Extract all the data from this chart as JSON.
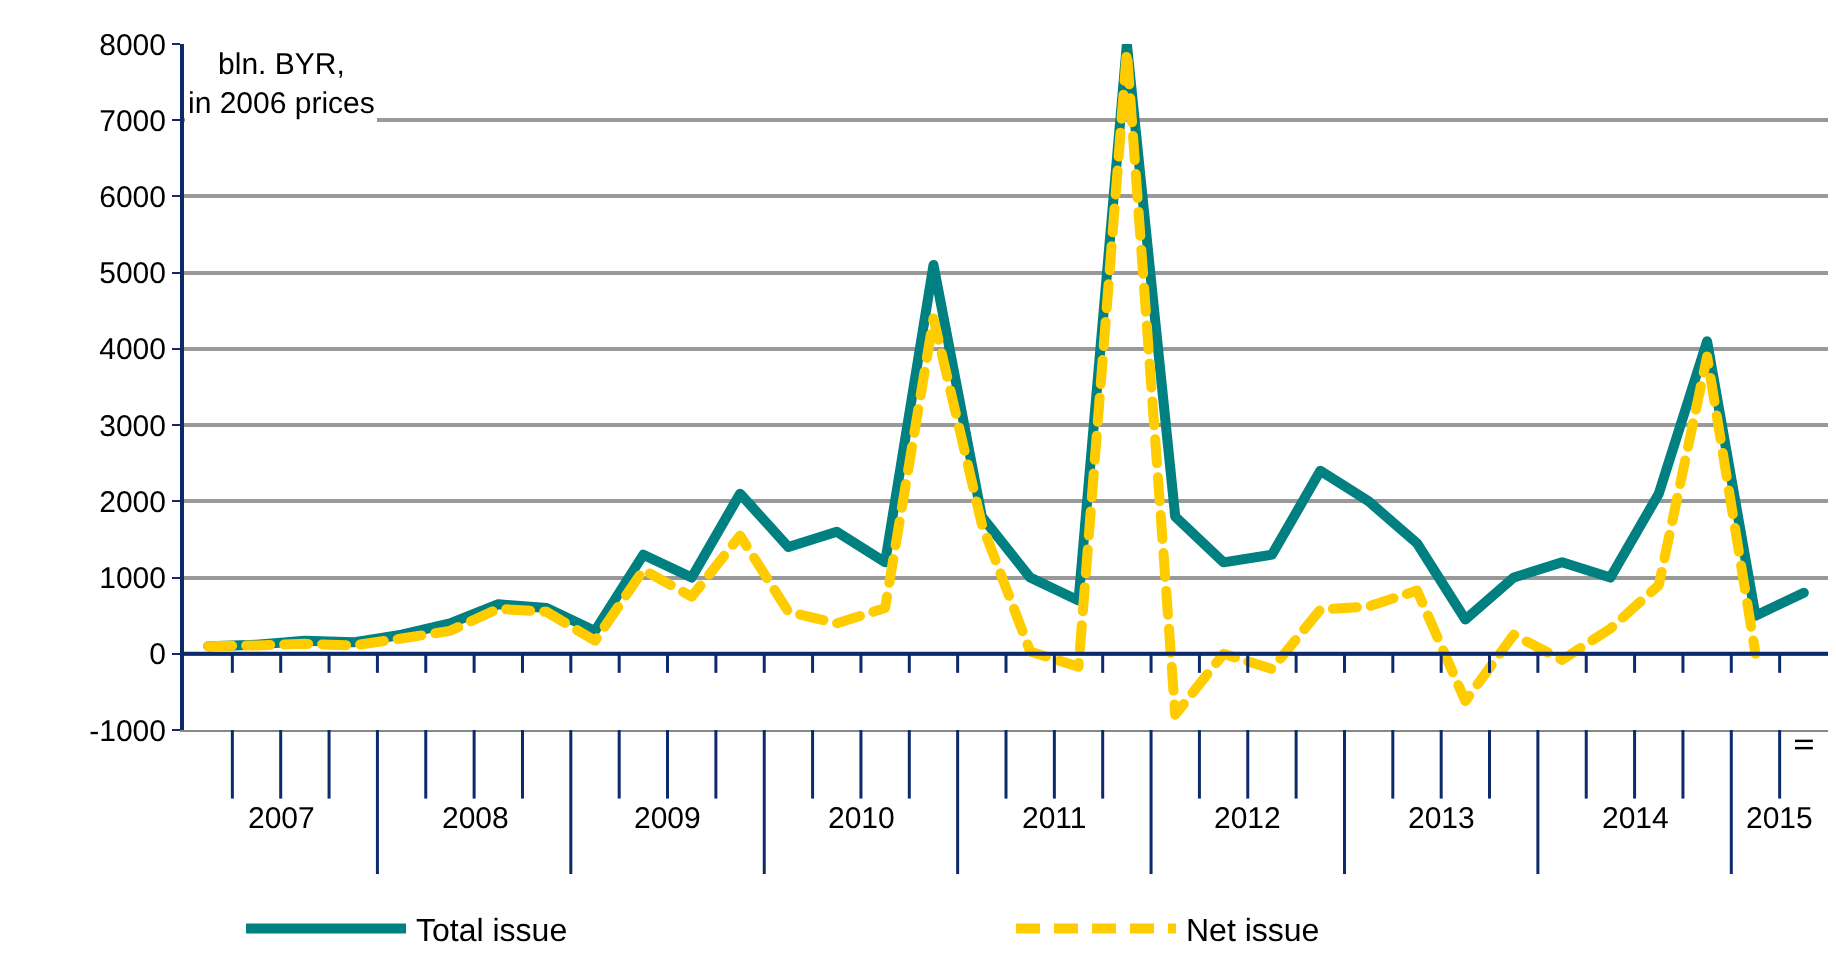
{
  "chart_data": {
    "type": "line",
    "ylabel": "bln. BYR,\nin 2006 prices",
    "categories": [
      null,
      null,
      null,
      null,
      null,
      null,
      null,
      null,
      null,
      null,
      null,
      null,
      null,
      null,
      null,
      null,
      null,
      null,
      null,
      null,
      null,
      null,
      null,
      null,
      null,
      null,
      null,
      null,
      null,
      null,
      null,
      null,
      null,
      "II"
    ],
    "series": [
      {
        "name": "Total issue",
        "color": "#008080",
        "line_style": "solid",
        "values": [
          100,
          120,
          170,
          150,
          250,
          400,
          650,
          600,
          300,
          1300,
          1000,
          2100,
          1400,
          1600,
          1200,
          5100,
          1800,
          1000,
          700,
          8000,
          1800,
          1200,
          1300,
          2400,
          2000,
          1450,
          450,
          1000,
          1200,
          1000,
          2100,
          4100,
          500,
          800
        ]
      },
      {
        "name": "Net issue",
        "color": "#ffcc00",
        "line_style": "dashed",
        "values": [
          100,
          110,
          130,
          110,
          200,
          300,
          590,
          550,
          170,
          1100,
          750,
          1550,
          550,
          400,
          600,
          4400,
          1700,
          30,
          -170,
          7900,
          -800,
          0,
          -200,
          580,
          620,
          830,
          -620,
          250,
          -80,
          330,
          900,
          3900,
          0,
          null
        ]
      }
    ],
    "ylim": [
      -1000,
      8000
    ],
    "yticks": [
      -1000,
      0,
      1000,
      2000,
      3000,
      4000,
      5000,
      6000,
      7000,
      8000
    ],
    "grid": "y",
    "legend": "bottom",
    "ref_lines": [
      {
        "axis": "y",
        "value": 0,
        "color": "#0d2a6b"
      }
    ],
    "annotations": [
      "2007",
      "2008",
      "2009",
      "2010",
      "2011",
      "2012",
      "2013",
      "2014",
      "2015"
    ]
  }
}
